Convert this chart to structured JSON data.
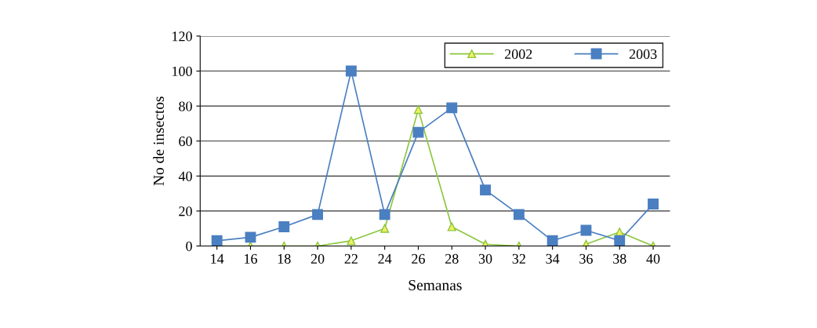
{
  "chart_data": {
    "type": "line",
    "xlabel": "Semanas",
    "ylabel": "No de insectos",
    "categories": [
      "14",
      "16",
      "18",
      "20",
      "22",
      "24",
      "26",
      "28",
      "30",
      "32",
      "34",
      "36",
      "38",
      "40"
    ],
    "series": [
      {
        "name": "2002",
        "color": "#8cc63f",
        "marker": "triangle",
        "values": [
          0,
          0,
          0,
          0,
          3,
          10,
          78,
          11,
          1,
          0,
          null,
          1,
          8,
          0
        ]
      },
      {
        "name": "2003",
        "color": "#4a7fc1",
        "marker": "square",
        "values": [
          3,
          5,
          11,
          18,
          100,
          18,
          65,
          79,
          32,
          18,
          3,
          9,
          3,
          24
        ]
      }
    ],
    "ylim": [
      0,
      120
    ],
    "yticks": [
      0,
      20,
      40,
      60,
      80,
      100,
      120
    ],
    "grid": "y",
    "legend": "top right",
    "line_style": "solid"
  }
}
